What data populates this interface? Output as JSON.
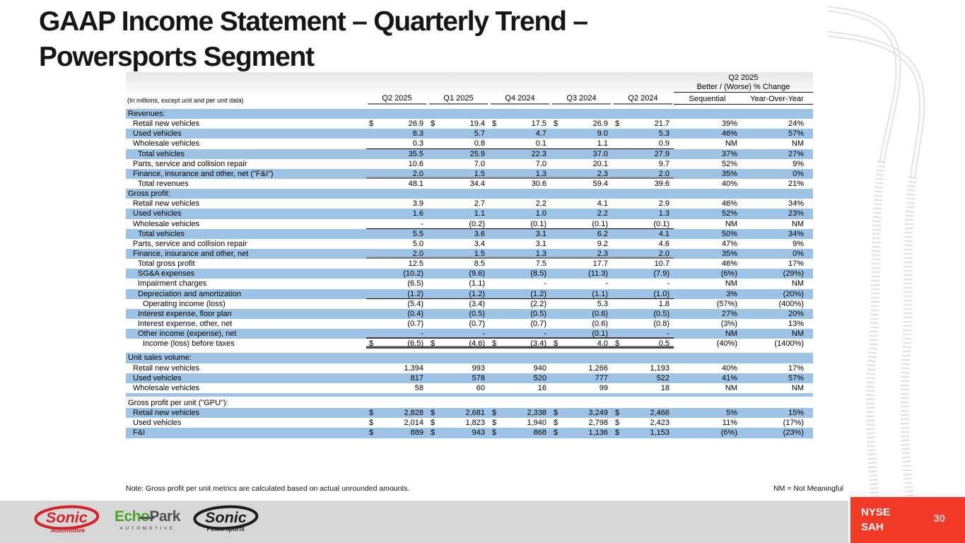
{
  "slide": {
    "title_line1": "GAAP Income Statement – Quarterly Trend –",
    "title_line2": "Powersports Segment",
    "note": "Note: Gross profit per unit metrics are calculated based on actual unrounded amounts.",
    "nm_note": "NM = Not Meaningful",
    "ticker_line1": "NYSE",
    "ticker_line2": "SAH",
    "page_number": "30"
  },
  "colors": {
    "row_shade_blue": "#9DC3E6",
    "footer_gray": "#D7D7D7",
    "brand_red": "#F23A26",
    "logo_red": "#D3222A",
    "echopark_green": "#4BA32B",
    "track_gray": "#E3E3E3"
  },
  "table": {
    "caption": "(In millions, except unit and per unit data)",
    "col_headers": [
      "Q2 2025",
      "Q1 2025",
      "Q4 2024",
      "Q3 2024",
      "Q2 2024"
    ],
    "change_header": {
      "line1": "Q2 2025",
      "line2": "Better / (Worse) % Change",
      "sub": [
        "Sequential",
        "Year-Over-Year"
      ]
    },
    "rows": [
      {
        "label": "Revenues:",
        "type": "section",
        "shade": true
      },
      {
        "label": "Retail new vehicles",
        "indent": 1,
        "dollar": true,
        "values": [
          "26.9",
          "19.4",
          "17.5",
          "26.9",
          "21.7"
        ],
        "seq": "39%",
        "yoy": "24%",
        "shade": false
      },
      {
        "label": "Used vehicles",
        "indent": 1,
        "values": [
          "8.3",
          "5.7",
          "4.7",
          "9.0",
          "5.3"
        ],
        "seq": "46%",
        "yoy": "57%",
        "shade": true
      },
      {
        "label": "Wholesale vehicles",
        "indent": 1,
        "values": [
          "0.3",
          "0.8",
          "0.1",
          "1.1",
          "0.9"
        ],
        "seq": "NM",
        "yoy": "NM",
        "shade": false,
        "underline": "thin"
      },
      {
        "label": "Total vehicles",
        "indent": 2,
        "values": [
          "35.5",
          "25.9",
          "22.3",
          "37.0",
          "27.9"
        ],
        "seq": "37%",
        "yoy": "27%",
        "shade": true
      },
      {
        "label": "Parts, service and collision repair",
        "indent": 1,
        "values": [
          "10.6",
          "7.0",
          "7.0",
          "20.1",
          "9.7"
        ],
        "seq": "52%",
        "yoy": "9%",
        "shade": false
      },
      {
        "label": "Finance, insurance and other, net (\"F&I\")",
        "indent": 1,
        "values": [
          "2.0",
          "1.5",
          "1.3",
          "2.3",
          "2.0"
        ],
        "seq": "35%",
        "yoy": "0%",
        "shade": true,
        "underline": "medium"
      },
      {
        "label": "Total revenues",
        "indent": 2,
        "values": [
          "48.1",
          "34.4",
          "30.6",
          "59.4",
          "39.6"
        ],
        "seq": "40%",
        "yoy": "21%",
        "shade": false
      },
      {
        "label": "Gross profit:",
        "type": "section",
        "shade": true
      },
      {
        "label": "Retail new vehicles",
        "indent": 1,
        "values": [
          "3.9",
          "2.7",
          "2.2",
          "4.1",
          "2.9"
        ],
        "seq": "46%",
        "yoy": "34%",
        "shade": false
      },
      {
        "label": "Used vehicles",
        "indent": 1,
        "values": [
          "1.6",
          "1.1",
          "1.0",
          "2.2",
          "1.3"
        ],
        "seq": "52%",
        "yoy": "23%",
        "shade": true
      },
      {
        "label": "Wholesale vehicles",
        "indent": 1,
        "values": [
          "-",
          "(0.2)",
          "(0.1)",
          "(0.1)",
          "(0.1)"
        ],
        "seq": "NM",
        "yoy": "NM",
        "shade": false,
        "underline": "thin"
      },
      {
        "label": "Total vehicles",
        "indent": 2,
        "values": [
          "5.5",
          "3.6",
          "3.1",
          "6.2",
          "4.1"
        ],
        "seq": "50%",
        "yoy": "34%",
        "shade": true
      },
      {
        "label": "Parts, service and collision repair",
        "indent": 1,
        "values": [
          "5.0",
          "3.4",
          "3.1",
          "9.2",
          "4.6"
        ],
        "seq": "47%",
        "yoy": "9%",
        "shade": false
      },
      {
        "label": "Finance, insurance and other, net",
        "indent": 1,
        "values": [
          "2.0",
          "1.5",
          "1.3",
          "2.3",
          "2.0"
        ],
        "seq": "35%",
        "yoy": "0%",
        "shade": true,
        "underline": "medium"
      },
      {
        "label": "Total gross profit",
        "indent": 2,
        "values": [
          "12.5",
          "8.5",
          "7.5",
          "17.7",
          "10.7"
        ],
        "seq": "46%",
        "yoy": "17%",
        "shade": false
      },
      {
        "label": "SG&A expenses",
        "indent": 2,
        "values": [
          "(10.2)",
          "(9.6)",
          "(8.5)",
          "(11.3)",
          "(7.9)"
        ],
        "seq": "(6%)",
        "yoy": "(29%)",
        "shade": true
      },
      {
        "label": "Impairment charges",
        "indent": 2,
        "values": [
          "(6.5)",
          "(1.1)",
          "-",
          "-",
          "-"
        ],
        "seq": "NM",
        "yoy": "NM",
        "shade": false
      },
      {
        "label": "Depreciation and amortization",
        "indent": 2,
        "values": [
          "(1.2)",
          "(1.2)",
          "(1.2)",
          "(1.1)",
          "(1.0)"
        ],
        "seq": "3%",
        "yoy": "(20%)",
        "shade": true,
        "underline": "thin"
      },
      {
        "label": "Operating income (loss)",
        "indent": 3,
        "values": [
          "(5.4)",
          "(3.4)",
          "(2.2)",
          "5.3",
          "1.8"
        ],
        "seq": "(57%)",
        "yoy": "(400%)",
        "shade": false
      },
      {
        "label": "Interest expense, floor plan",
        "indent": 2,
        "values": [
          "(0.4)",
          "(0.5)",
          "(0.5)",
          "(0.6)",
          "(0.5)"
        ],
        "seq": "27%",
        "yoy": "20%",
        "shade": true
      },
      {
        "label": "Interest expense, other, net",
        "indent": 2,
        "values": [
          "(0.7)",
          "(0.7)",
          "(0.7)",
          "(0.6)",
          "(0.8)"
        ],
        "seq": "(3%)",
        "yoy": "13%",
        "shade": false
      },
      {
        "label": "Other income (expense), net",
        "indent": 2,
        "values": [
          "-",
          "-",
          "-",
          "(0.1)",
          "-"
        ],
        "seq": "NM",
        "yoy": "NM",
        "shade": true,
        "underline": "dark"
      },
      {
        "label": "Income (loss) before taxes",
        "indent": 3,
        "dollar": true,
        "values": [
          "(6.5)",
          "(4.6)",
          "(3.4)",
          "4.0",
          "0.5"
        ],
        "seq": "(40%)",
        "yoy": "(1400%)",
        "shade": false,
        "underline": "heavy"
      },
      {
        "type": "gap"
      },
      {
        "label": "Unit sales volume:",
        "type": "section",
        "shade": true
      },
      {
        "label": "Retail new vehicles",
        "indent": 1,
        "values": [
          "1,394",
          "993",
          "940",
          "1,266",
          "1,193"
        ],
        "seq": "40%",
        "yoy": "17%",
        "shade": false
      },
      {
        "label": "Used vehicles",
        "indent": 1,
        "values": [
          "817",
          "578",
          "520",
          "777",
          "522"
        ],
        "seq": "41%",
        "yoy": "57%",
        "shade": true
      },
      {
        "label": "Wholesale vehicles",
        "indent": 1,
        "values": [
          "58",
          "60",
          "16",
          "99",
          "18"
        ],
        "seq": "NM",
        "yoy": "NM",
        "shade": false
      },
      {
        "type": "strip"
      },
      {
        "label": "Gross profit per unit (\"GPU\"):",
        "type": "section",
        "shade": false
      },
      {
        "label": "Retail new vehicles",
        "indent": 1,
        "dollar": true,
        "values": [
          "2,828",
          "2,681",
          "2,338",
          "3,249",
          "2,466"
        ],
        "seq": "5%",
        "yoy": "15%",
        "shade": true
      },
      {
        "label": "Used vehicles",
        "indent": 1,
        "dollar": true,
        "values": [
          "2,014",
          "1,823",
          "1,940",
          "2,798",
          "2,423"
        ],
        "seq": "11%",
        "yoy": "(17%)",
        "shade": false
      },
      {
        "label": "F&I",
        "indent": 1,
        "dollar": true,
        "values": [
          "889",
          "943",
          "868",
          "1,136",
          "1,153"
        ],
        "seq": "(6%)",
        "yoy": "(23%)",
        "shade": true
      }
    ]
  },
  "footer": {
    "logos": {
      "sonic_automotive": {
        "name": "Sonic",
        "sub": "Automotive"
      },
      "echopark": {
        "green": "Ech",
        "o": "o",
        "dark": "Park",
        "sub": "AUTOMOTIVE"
      },
      "sonic_powersports": {
        "name": "Sonic",
        "sub": "Powersports"
      }
    }
  }
}
